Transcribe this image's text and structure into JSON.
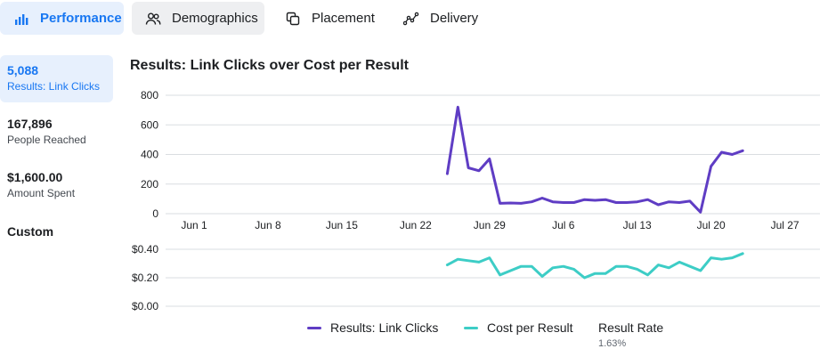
{
  "tabs": [
    {
      "label": "Performance",
      "icon": "bar-chart-icon"
    },
    {
      "label": "Demographics",
      "icon": "people-icon"
    },
    {
      "label": "Placement",
      "icon": "placement-icon"
    },
    {
      "label": "Delivery",
      "icon": "delivery-icon"
    }
  ],
  "metrics": [
    {
      "value": "5,088",
      "label": "Results: Link Clicks"
    },
    {
      "value": "167,896",
      "label": "People Reached"
    },
    {
      "value": "$1,600.00",
      "label": "Amount Spent"
    },
    {
      "value": "Custom",
      "label": ""
    }
  ],
  "chart": {
    "title": "Results: Link Clicks over Cost per Result"
  },
  "legend": {
    "clicks_label": "Results: Link Clicks",
    "cost_label": "Cost per Result",
    "rate_label": "Result Rate",
    "rate_value": "1.63%"
  },
  "colors": {
    "accent": "#1877f2",
    "clicks": "#5f3dc4",
    "cost": "#3dcdc6",
    "grid": "#dadde1"
  },
  "chart_data": [
    {
      "type": "line",
      "series": [
        {
          "name": "Results: Link Clicks",
          "values": [
            270,
            720,
            310,
            290,
            370,
            70,
            72,
            70,
            80,
            105,
            80,
            75,
            75,
            95,
            90,
            95,
            75,
            75,
            80,
            95,
            60,
            80,
            75,
            85,
            10,
            320,
            415,
            400,
            425
          ]
        }
      ],
      "x_start_index": 24,
      "x_ticks": [
        "Jun 1",
        "Jun 8",
        "Jun 15",
        "Jun 22",
        "Jun 29",
        "Jul 6",
        "Jul 13",
        "Jul 20",
        "Jul 27"
      ],
      "y_ticks": [
        "800",
        "600",
        "400",
        "200",
        "0"
      ],
      "ylim": [
        0,
        800
      ]
    },
    {
      "type": "line",
      "series": [
        {
          "name": "Cost per Result",
          "values": [
            0.29,
            0.33,
            0.32,
            0.31,
            0.34,
            0.22,
            0.25,
            0.28,
            0.28,
            0.21,
            0.27,
            0.28,
            0.26,
            0.2,
            0.23,
            0.23,
            0.28,
            0.28,
            0.26,
            0.22,
            0.29,
            0.27,
            0.31,
            0.28,
            0.25,
            0.34,
            0.33,
            0.34,
            0.37
          ]
        }
      ],
      "x_start_index": 24,
      "y_ticks": [
        "$0.40",
        "$0.20",
        "$0.00"
      ],
      "ylim": [
        0,
        0.4
      ]
    }
  ]
}
